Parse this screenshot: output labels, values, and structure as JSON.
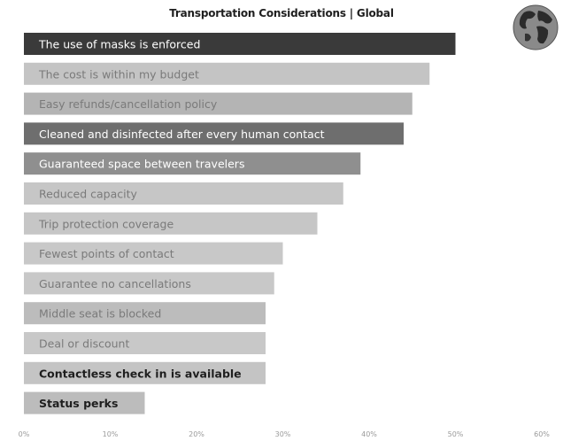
{
  "chart_data": {
    "type": "bar",
    "orientation": "horizontal",
    "title": "Transportation Considerations | Global",
    "categories": [
      "The use of masks is enforced",
      "The cost is within my budget",
      "Easy refunds/cancellation policy",
      "Cleaned and disinfected after every human contact",
      "Guaranteed space between travelers",
      "Reduced capacity",
      "Trip protection coverage",
      "Fewest points of contact",
      "Guarantee no cancellations",
      "Middle seat is blocked",
      "Deal or discount",
      "Contactless check in is available",
      "Status perks"
    ],
    "values": [
      50,
      47,
      45,
      44,
      39,
      37,
      34,
      30,
      29,
      28,
      28,
      28,
      14
    ],
    "xlim": [
      0,
      60
    ],
    "x_ticks": [
      "0%",
      "10%",
      "20%",
      "30%",
      "40%",
      "50%",
      "60%"
    ],
    "highlight_index": 0,
    "highlight_color": "#3a3a3a",
    "bar_colors": [
      "#3a3a3a",
      "#c4c4c4",
      "#b4b4b4",
      "#6e6e6e",
      "#8f8f8f",
      "#c6c6c6",
      "#c6c6c6",
      "#c8c8c8",
      "#c8c8c8",
      "#bcbcbc",
      "#c8c8c8",
      "#c4c4c4",
      "#bcbcbc"
    ],
    "label_colors": [
      "#ffffff",
      "#7a7a7a",
      "#7a7a7a",
      "#ffffff",
      "#ffffff",
      "#7a7a7a",
      "#7a7a7a",
      "#7a7a7a",
      "#7a7a7a",
      "#7a7a7a",
      "#7a7a7a",
      "#1e1e1e",
      "#1e1e1e"
    ],
    "grid": false,
    "legend": "none",
    "icon": "globe-icon"
  }
}
